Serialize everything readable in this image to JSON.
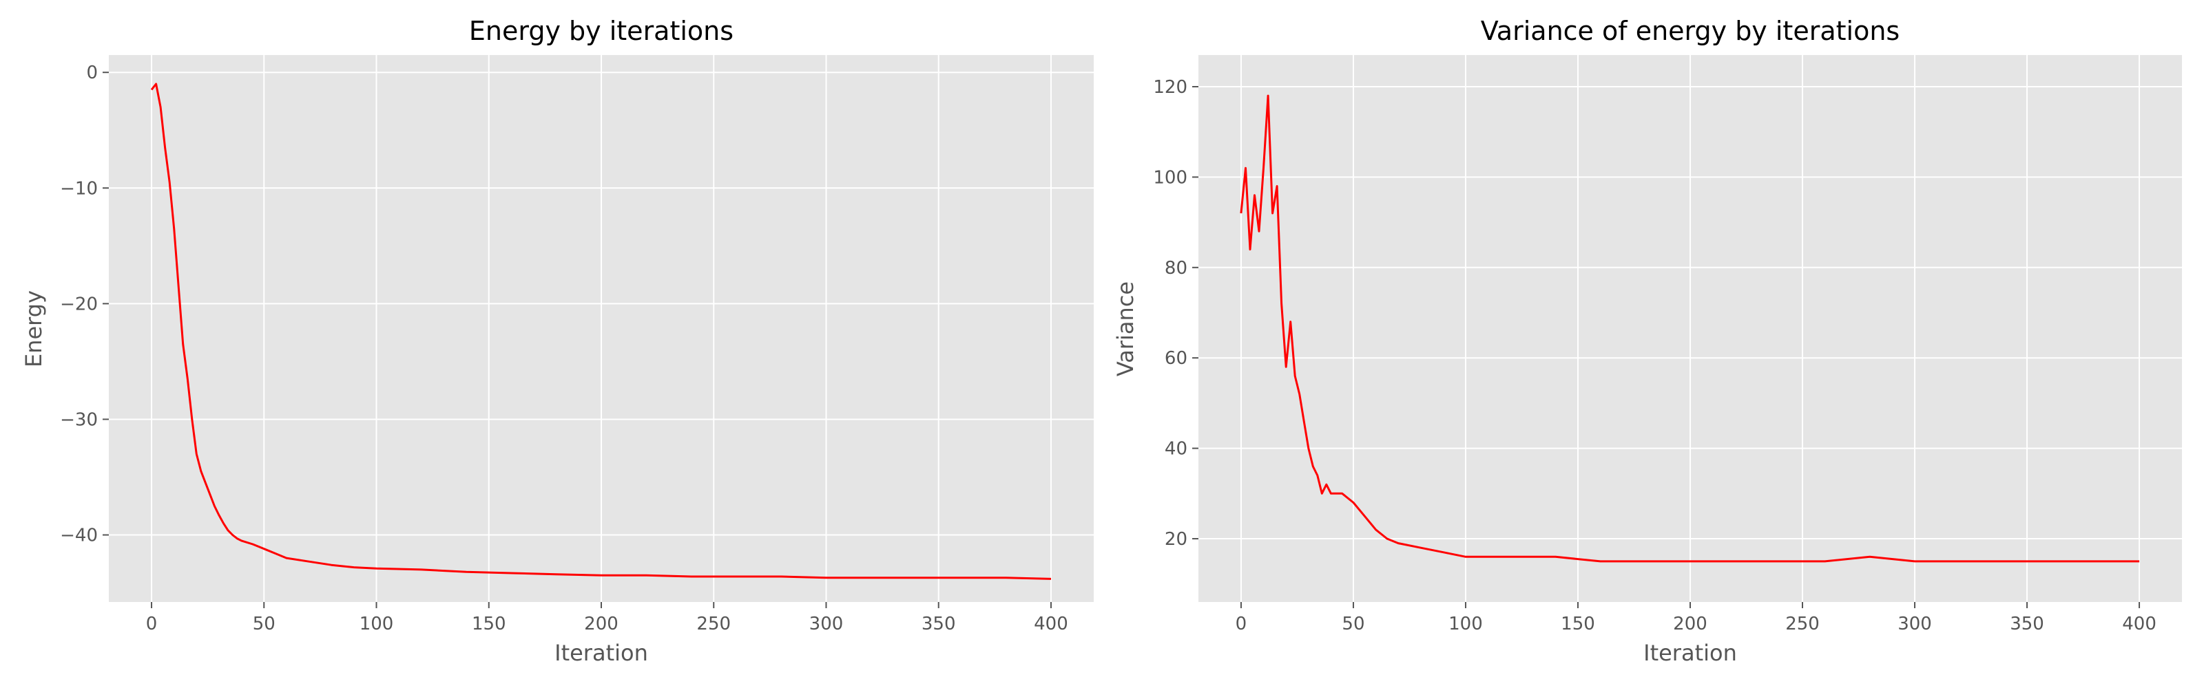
{
  "chart_data": [
    {
      "type": "line",
      "title": "Energy by iterations",
      "xlabel": "Iteration",
      "ylabel": "Energy",
      "xlim": [
        -19,
        419
      ],
      "ylim": [
        -45.8,
        1.5
      ],
      "xticks": [
        0,
        50,
        100,
        150,
        200,
        250,
        300,
        350,
        400
      ],
      "yticks": [
        -40,
        -30,
        -20,
        -10,
        0
      ],
      "xtick_labels": [
        "0",
        "50",
        "100",
        "150",
        "200",
        "250",
        "300",
        "350",
        "400"
      ],
      "ytick_labels": [
        "−40",
        "−30",
        "−20",
        "−10",
        "0"
      ],
      "grid": true,
      "series": [
        {
          "color": "#ff0000",
          "x": [
            0,
            2,
            4,
            6,
            8,
            10,
            12,
            14,
            16,
            18,
            20,
            22,
            24,
            26,
            28,
            30,
            32,
            34,
            36,
            38,
            40,
            45,
            50,
            55,
            60,
            70,
            80,
            90,
            100,
            120,
            140,
            160,
            180,
            200,
            220,
            240,
            260,
            280,
            300,
            320,
            340,
            360,
            380,
            400
          ],
          "y": [
            -1.5,
            -1.0,
            -3.0,
            -6.5,
            -9.5,
            -13.5,
            -18.5,
            -23.5,
            -26.5,
            -30.0,
            -33.0,
            -34.5,
            -35.5,
            -36.5,
            -37.5,
            -38.3,
            -39.0,
            -39.6,
            -40.0,
            -40.3,
            -40.5,
            -40.8,
            -41.2,
            -41.6,
            -42.0,
            -42.3,
            -42.6,
            -42.8,
            -42.9,
            -43.0,
            -43.2,
            -43.3,
            -43.4,
            -43.5,
            -43.5,
            -43.6,
            -43.6,
            -43.6,
            -43.7,
            -43.7,
            -43.7,
            -43.7,
            -43.7,
            -43.8
          ]
        }
      ]
    },
    {
      "type": "line",
      "title": "Variance of energy by iterations",
      "xlabel": "Iteration",
      "ylabel": "Variance",
      "xlim": [
        -19,
        419
      ],
      "ylim": [
        6,
        127
      ],
      "xticks": [
        0,
        50,
        100,
        150,
        200,
        250,
        300,
        350,
        400
      ],
      "yticks": [
        20,
        40,
        60,
        80,
        100,
        120
      ],
      "xtick_labels": [
        "0",
        "50",
        "100",
        "150",
        "200",
        "250",
        "300",
        "350",
        "400"
      ],
      "ytick_labels": [
        "20",
        "40",
        "60",
        "80",
        "100",
        "120"
      ],
      "grid": true,
      "series": [
        {
          "color": "#ff0000",
          "x": [
            0,
            2,
            4,
            6,
            8,
            10,
            12,
            14,
            16,
            18,
            20,
            22,
            24,
            26,
            28,
            30,
            32,
            34,
            36,
            38,
            40,
            45,
            50,
            55,
            60,
            65,
            70,
            80,
            90,
            100,
            120,
            140,
            160,
            180,
            200,
            220,
            240,
            260,
            280,
            300,
            320,
            340,
            360,
            380,
            400
          ],
          "y": [
            92,
            102,
            84,
            96,
            88,
            102,
            118,
            92,
            98,
            72,
            58,
            68,
            56,
            52,
            46,
            40,
            36,
            34,
            30,
            32,
            30,
            30,
            28,
            25,
            22,
            20,
            19,
            18,
            17,
            16,
            16,
            16,
            15,
            15,
            15,
            15,
            15,
            15,
            16,
            15,
            15,
            15,
            15,
            15,
            15
          ]
        }
      ]
    }
  ]
}
